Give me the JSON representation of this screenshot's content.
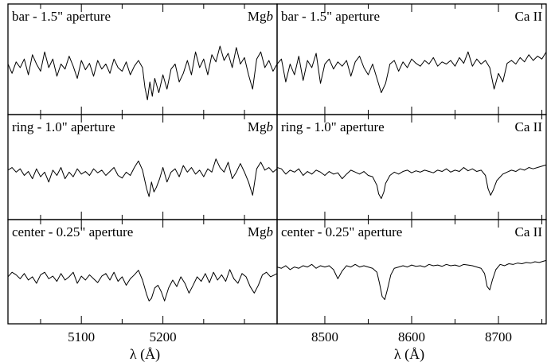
{
  "chart_data": [
    {
      "type": "line",
      "panel_label": "bar - 1.5\" aperture",
      "line_label": "Mgb",
      "feature_name": "Mg",
      "feature_suffix": "b",
      "xlim": [
        5010,
        5340
      ],
      "x": [
        5010,
        5015,
        5020,
        5025,
        5030,
        5035,
        5040,
        5045,
        5050,
        5055,
        5060,
        5065,
        5070,
        5075,
        5080,
        5085,
        5090,
        5095,
        5100,
        5105,
        5110,
        5115,
        5120,
        5125,
        5130,
        5135,
        5140,
        5145,
        5150,
        5155,
        5160,
        5165,
        5170,
        5175,
        5178,
        5181,
        5184,
        5187,
        5190,
        5195,
        5200,
        5205,
        5210,
        5215,
        5220,
        5225,
        5230,
        5235,
        5240,
        5245,
        5250,
        5255,
        5260,
        5265,
        5270,
        5275,
        5280,
        5285,
        5290,
        5295,
        5300,
        5305,
        5310,
        5315,
        5320,
        5325,
        5330,
        5335,
        5340
      ],
      "y": [
        0.55,
        0.42,
        0.58,
        0.5,
        0.62,
        0.4,
        0.68,
        0.55,
        0.45,
        0.72,
        0.5,
        0.62,
        0.38,
        0.55,
        0.48,
        0.66,
        0.52,
        0.35,
        0.6,
        0.47,
        0.56,
        0.38,
        0.6,
        0.48,
        0.55,
        0.42,
        0.62,
        0.5,
        0.45,
        0.58,
        0.4,
        0.52,
        0.6,
        0.5,
        0.22,
        0.05,
        0.3,
        0.1,
        0.35,
        0.15,
        0.4,
        0.2,
        0.48,
        0.55,
        0.3,
        0.42,
        0.6,
        0.4,
        0.72,
        0.5,
        0.62,
        0.4,
        0.68,
        0.58,
        0.8,
        0.6,
        0.7,
        0.5,
        0.78,
        0.55,
        0.64,
        0.4,
        0.2,
        0.62,
        0.72,
        0.5,
        0.6,
        0.45,
        0.55
      ]
    },
    {
      "type": "line",
      "panel_label": "bar - 1.5\" aperture",
      "line_label": "Ca II",
      "xlim": [
        8445,
        8755
      ],
      "x": [
        8445,
        8450,
        8455,
        8460,
        8465,
        8470,
        8475,
        8480,
        8485,
        8490,
        8495,
        8500,
        8505,
        8510,
        8515,
        8520,
        8525,
        8530,
        8535,
        8540,
        8545,
        8550,
        8555,
        8560,
        8565,
        8570,
        8575,
        8580,
        8585,
        8590,
        8595,
        8600,
        8605,
        8610,
        8615,
        8620,
        8625,
        8630,
        8635,
        8640,
        8645,
        8650,
        8655,
        8660,
        8665,
        8670,
        8675,
        8680,
        8685,
        8690,
        8695,
        8700,
        8705,
        8710,
        8715,
        8720,
        8725,
        8730,
        8735,
        8740,
        8745,
        8750,
        8755
      ],
      "y": [
        0.55,
        0.62,
        0.3,
        0.55,
        0.4,
        0.66,
        0.32,
        0.6,
        0.5,
        0.7,
        0.28,
        0.55,
        0.62,
        0.48,
        0.58,
        0.52,
        0.6,
        0.38,
        0.58,
        0.66,
        0.5,
        0.4,
        0.55,
        0.35,
        0.15,
        0.28,
        0.55,
        0.6,
        0.45,
        0.58,
        0.5,
        0.62,
        0.56,
        0.52,
        0.6,
        0.55,
        0.64,
        0.52,
        0.58,
        0.55,
        0.6,
        0.52,
        0.64,
        0.56,
        0.72,
        0.52,
        0.62,
        0.55,
        0.6,
        0.5,
        0.2,
        0.42,
        0.3,
        0.56,
        0.6,
        0.55,
        0.64,
        0.58,
        0.68,
        0.6,
        0.66,
        0.62,
        0.72
      ]
    },
    {
      "type": "line",
      "panel_label": "ring - 1.0\" aperture",
      "line_label": "Mgb",
      "feature_name": "Mg",
      "feature_suffix": "b",
      "xlim": [
        5010,
        5340
      ],
      "x": [
        5010,
        5015,
        5020,
        5025,
        5030,
        5035,
        5040,
        5045,
        5050,
        5055,
        5060,
        5065,
        5070,
        5075,
        5080,
        5085,
        5090,
        5095,
        5100,
        5105,
        5110,
        5115,
        5120,
        5125,
        5130,
        5135,
        5140,
        5145,
        5150,
        5155,
        5160,
        5165,
        5170,
        5175,
        5180,
        5183,
        5186,
        5189,
        5192,
        5196,
        5200,
        5205,
        5210,
        5215,
        5220,
        5225,
        5230,
        5235,
        5240,
        5245,
        5250,
        5255,
        5260,
        5265,
        5270,
        5275,
        5280,
        5285,
        5290,
        5295,
        5300,
        5305,
        5310,
        5315,
        5320,
        5325,
        5330,
        5335,
        5340
      ],
      "y": [
        0.58,
        0.62,
        0.55,
        0.6,
        0.5,
        0.56,
        0.45,
        0.6,
        0.48,
        0.55,
        0.4,
        0.58,
        0.5,
        0.62,
        0.45,
        0.55,
        0.48,
        0.6,
        0.52,
        0.56,
        0.5,
        0.6,
        0.54,
        0.58,
        0.5,
        0.56,
        0.62,
        0.5,
        0.46,
        0.55,
        0.5,
        0.62,
        0.72,
        0.58,
        0.3,
        0.18,
        0.4,
        0.25,
        0.32,
        0.45,
        0.62,
        0.4,
        0.55,
        0.6,
        0.48,
        0.65,
        0.55,
        0.62,
        0.52,
        0.58,
        0.48,
        0.6,
        0.55,
        0.75,
        0.62,
        0.55,
        0.7,
        0.45,
        0.55,
        0.68,
        0.55,
        0.4,
        0.2,
        0.6,
        0.7,
        0.58,
        0.62,
        0.55,
        0.6
      ]
    },
    {
      "type": "line",
      "panel_label": "ring - 1.0\" aperture",
      "line_label": "Ca II",
      "xlim": [
        8445,
        8755
      ],
      "x": [
        8445,
        8450,
        8455,
        8460,
        8465,
        8470,
        8475,
        8480,
        8485,
        8490,
        8495,
        8500,
        8505,
        8510,
        8515,
        8520,
        8525,
        8530,
        8535,
        8540,
        8545,
        8550,
        8555,
        8560,
        8562,
        8565,
        8568,
        8570,
        8575,
        8580,
        8585,
        8590,
        8595,
        8600,
        8605,
        8610,
        8615,
        8620,
        8625,
        8630,
        8635,
        8640,
        8645,
        8650,
        8655,
        8660,
        8665,
        8670,
        8675,
        8680,
        8685,
        8688,
        8691,
        8694,
        8698,
        8705,
        8710,
        8715,
        8720,
        8725,
        8730,
        8735,
        8740,
        8745,
        8750,
        8755
      ],
      "y": [
        0.62,
        0.6,
        0.52,
        0.58,
        0.55,
        0.6,
        0.5,
        0.56,
        0.52,
        0.58,
        0.55,
        0.5,
        0.56,
        0.52,
        0.54,
        0.45,
        0.52,
        0.58,
        0.55,
        0.52,
        0.56,
        0.5,
        0.48,
        0.35,
        0.22,
        0.15,
        0.25,
        0.38,
        0.5,
        0.55,
        0.52,
        0.56,
        0.58,
        0.54,
        0.57,
        0.55,
        0.58,
        0.56,
        0.54,
        0.58,
        0.56,
        0.6,
        0.55,
        0.58,
        0.56,
        0.62,
        0.57,
        0.6,
        0.56,
        0.58,
        0.5,
        0.3,
        0.2,
        0.28,
        0.42,
        0.52,
        0.55,
        0.58,
        0.56,
        0.6,
        0.58,
        0.62,
        0.6,
        0.62,
        0.64,
        0.66
      ]
    },
    {
      "type": "line",
      "panel_label": "center - 0.25\" aperture",
      "line_label": "Mgb",
      "feature_name": "Mg",
      "feature_suffix": "b",
      "xlim": [
        5010,
        5340
      ],
      "x": [
        5010,
        5015,
        5020,
        5025,
        5030,
        5035,
        5040,
        5045,
        5050,
        5055,
        5060,
        5065,
        5070,
        5075,
        5080,
        5085,
        5090,
        5095,
        5100,
        5105,
        5110,
        5115,
        5120,
        5125,
        5130,
        5135,
        5140,
        5145,
        5150,
        5155,
        5160,
        5165,
        5170,
        5175,
        5180,
        5183,
        5186,
        5190,
        5194,
        5198,
        5202,
        5207,
        5212,
        5217,
        5222,
        5227,
        5232,
        5237,
        5242,
        5247,
        5252,
        5257,
        5262,
        5267,
        5272,
        5277,
        5282,
        5287,
        5292,
        5297,
        5302,
        5307,
        5312,
        5317,
        5322,
        5327,
        5332,
        5337,
        5340
      ],
      "y": [
        0.55,
        0.62,
        0.58,
        0.52,
        0.6,
        0.5,
        0.55,
        0.45,
        0.58,
        0.62,
        0.52,
        0.56,
        0.48,
        0.6,
        0.5,
        0.55,
        0.62,
        0.45,
        0.56,
        0.5,
        0.58,
        0.52,
        0.46,
        0.56,
        0.6,
        0.5,
        0.62,
        0.48,
        0.55,
        0.42,
        0.52,
        0.58,
        0.65,
        0.5,
        0.28,
        0.18,
        0.22,
        0.38,
        0.42,
        0.32,
        0.18,
        0.38,
        0.5,
        0.4,
        0.55,
        0.45,
        0.3,
        0.42,
        0.55,
        0.48,
        0.6,
        0.46,
        0.62,
        0.5,
        0.58,
        0.48,
        0.66,
        0.52,
        0.45,
        0.6,
        0.55,
        0.4,
        0.3,
        0.42,
        0.58,
        0.62,
        0.55,
        0.58,
        0.6
      ]
    },
    {
      "type": "line",
      "panel_label": "center - 0.25\" aperture",
      "line_label": "Ca II",
      "xlim": [
        8445,
        8755
      ],
      "x": [
        8445,
        8450,
        8455,
        8460,
        8465,
        8470,
        8475,
        8480,
        8485,
        8490,
        8495,
        8500,
        8505,
        8510,
        8515,
        8520,
        8525,
        8530,
        8535,
        8540,
        8545,
        8550,
        8555,
        8560,
        8563,
        8566,
        8569,
        8572,
        8576,
        8580,
        8585,
        8590,
        8595,
        8600,
        8605,
        8610,
        8615,
        8620,
        8625,
        8630,
        8635,
        8640,
        8645,
        8650,
        8655,
        8660,
        8665,
        8670,
        8675,
        8680,
        8684,
        8687,
        8690,
        8693,
        8697,
        8702,
        8707,
        8712,
        8717,
        8722,
        8727,
        8732,
        8737,
        8742,
        8747,
        8752,
        8755
      ],
      "y": [
        0.7,
        0.68,
        0.72,
        0.66,
        0.7,
        0.68,
        0.72,
        0.7,
        0.74,
        0.68,
        0.72,
        0.7,
        0.72,
        0.66,
        0.52,
        0.64,
        0.72,
        0.7,
        0.74,
        0.7,
        0.72,
        0.7,
        0.68,
        0.62,
        0.45,
        0.25,
        0.2,
        0.35,
        0.58,
        0.68,
        0.7,
        0.72,
        0.7,
        0.73,
        0.71,
        0.72,
        0.7,
        0.74,
        0.72,
        0.73,
        0.71,
        0.74,
        0.72,
        0.73,
        0.71,
        0.74,
        0.73,
        0.72,
        0.7,
        0.68,
        0.6,
        0.4,
        0.35,
        0.5,
        0.66,
        0.74,
        0.72,
        0.75,
        0.74,
        0.76,
        0.75,
        0.77,
        0.76,
        0.78,
        0.77,
        0.79,
        0.8
      ]
    }
  ],
  "axes": {
    "left_x_ticks": [
      "5100",
      "5200"
    ],
    "right_x_ticks": [
      "8500",
      "8600",
      "8700"
    ],
    "left_xlabel": "λ (Å)",
    "right_xlabel": "λ (Å)"
  }
}
